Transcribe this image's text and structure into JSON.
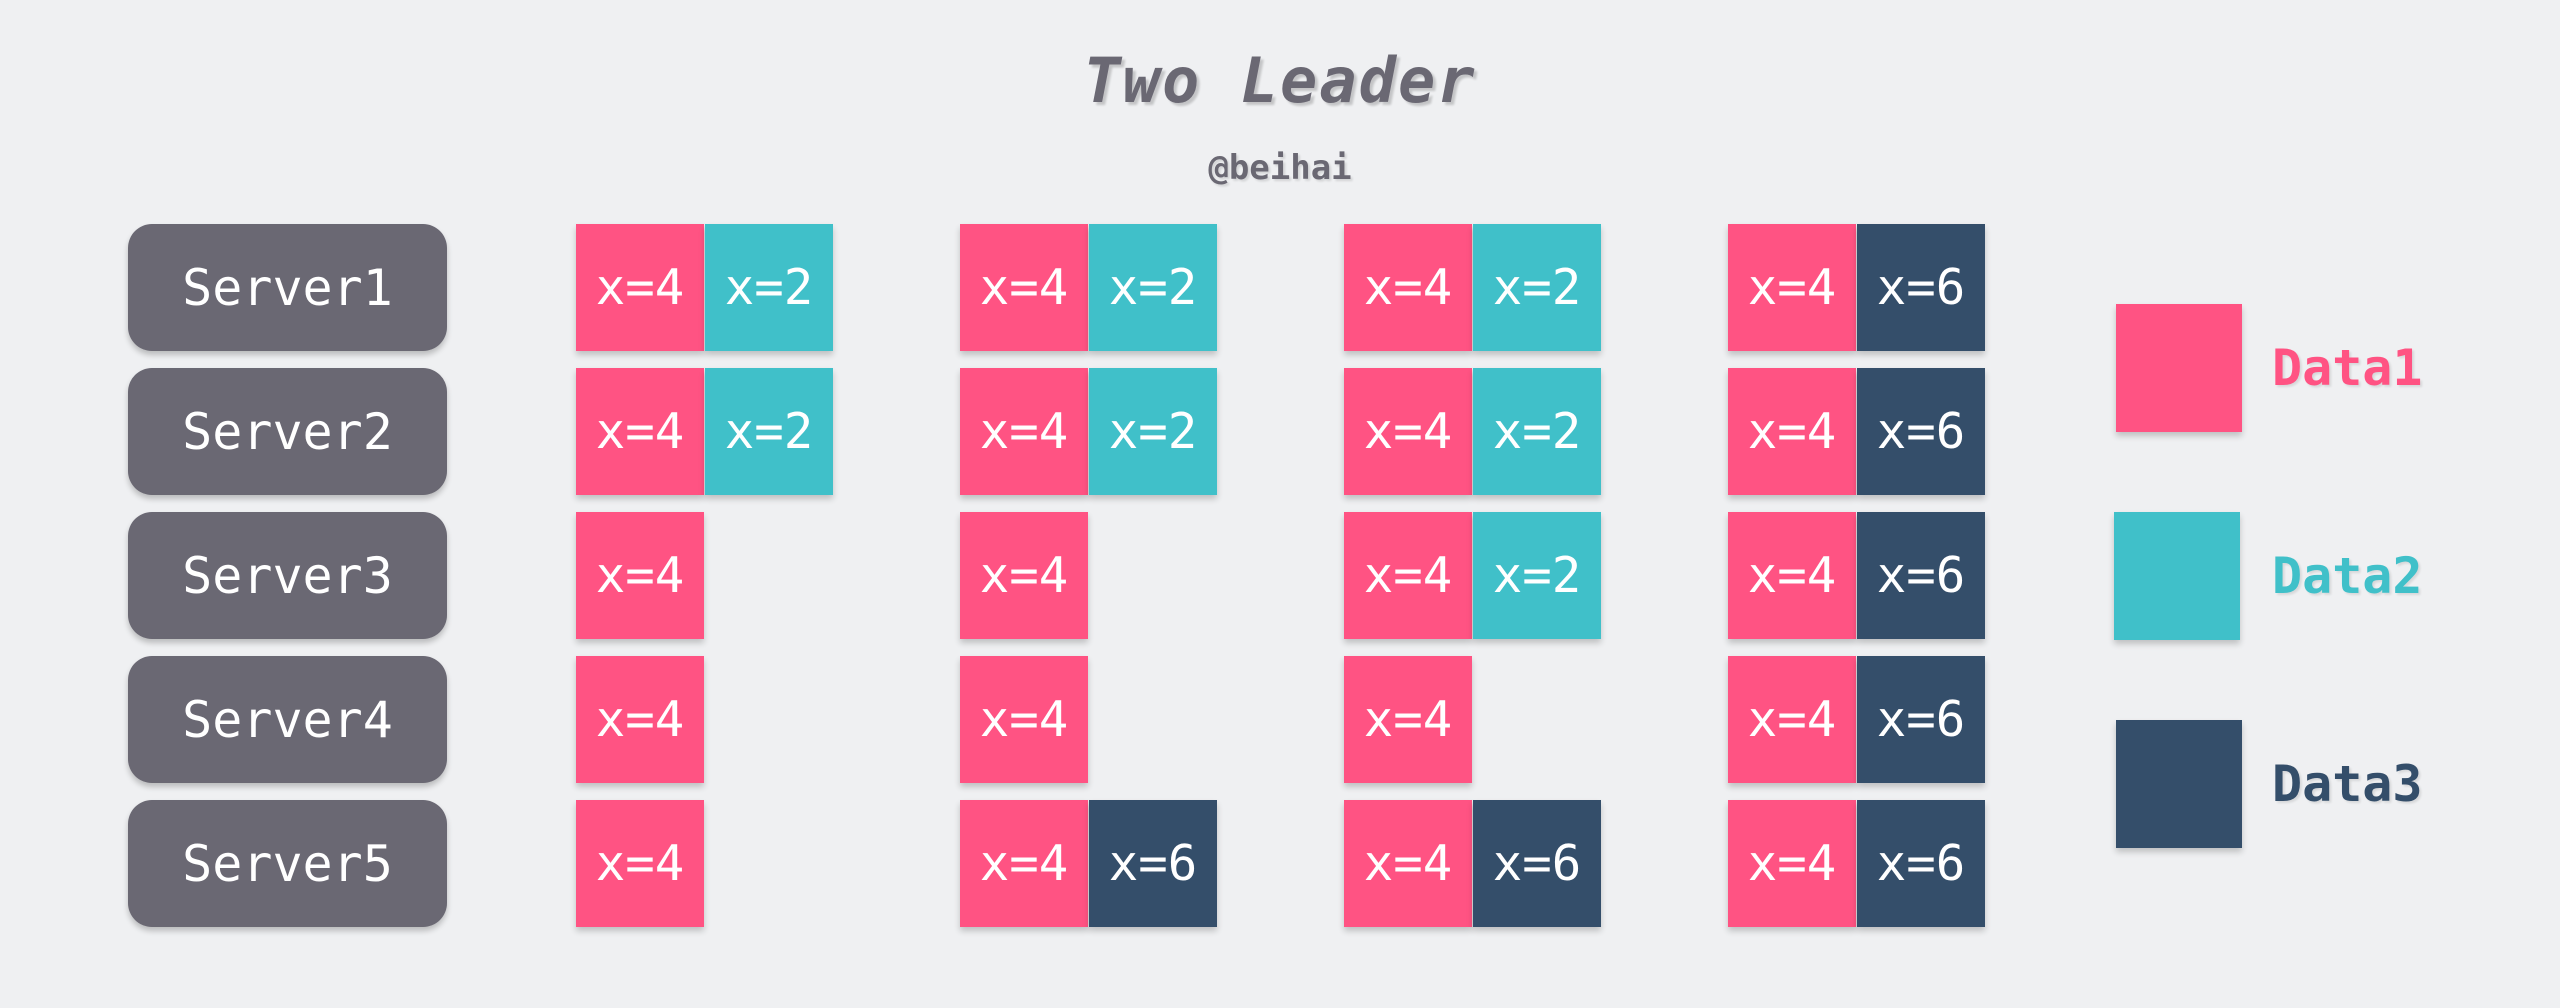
{
  "title": "Two Leader",
  "subtitle": "@beihai",
  "colors": {
    "background": "#eff0f2",
    "server": "#6a6873",
    "data1": "#ff5383",
    "data2": "#40c0c9",
    "data3": "#344e6a"
  },
  "servers": [
    "Server1",
    "Server2",
    "Server3",
    "Server4",
    "Server5"
  ],
  "stages": [
    [
      [
        {
          "text": "x=4",
          "kind": "data1"
        },
        {
          "text": "x=2",
          "kind": "data2"
        }
      ],
      [
        {
          "text": "x=4",
          "kind": "data1"
        },
        {
          "text": "x=2",
          "kind": "data2"
        }
      ],
      [
        {
          "text": "x=4",
          "kind": "data1"
        }
      ],
      [
        {
          "text": "x=4",
          "kind": "data1"
        }
      ],
      [
        {
          "text": "x=4",
          "kind": "data1"
        }
      ]
    ],
    [
      [
        {
          "text": "x=4",
          "kind": "data1"
        },
        {
          "text": "x=2",
          "kind": "data2"
        }
      ],
      [
        {
          "text": "x=4",
          "kind": "data1"
        },
        {
          "text": "x=2",
          "kind": "data2"
        }
      ],
      [
        {
          "text": "x=4",
          "kind": "data1"
        }
      ],
      [
        {
          "text": "x=4",
          "kind": "data1"
        }
      ],
      [
        {
          "text": "x=4",
          "kind": "data1"
        },
        {
          "text": "x=6",
          "kind": "data3"
        }
      ]
    ],
    [
      [
        {
          "text": "x=4",
          "kind": "data1"
        },
        {
          "text": "x=2",
          "kind": "data2"
        }
      ],
      [
        {
          "text": "x=4",
          "kind": "data1"
        },
        {
          "text": "x=2",
          "kind": "data2"
        }
      ],
      [
        {
          "text": "x=4",
          "kind": "data1"
        },
        {
          "text": "x=2",
          "kind": "data2"
        }
      ],
      [
        {
          "text": "x=4",
          "kind": "data1"
        }
      ],
      [
        {
          "text": "x=4",
          "kind": "data1"
        },
        {
          "text": "x=6",
          "kind": "data3"
        }
      ]
    ],
    [
      [
        {
          "text": "x=4",
          "kind": "data1"
        },
        {
          "text": "x=6",
          "kind": "data3"
        }
      ],
      [
        {
          "text": "x=4",
          "kind": "data1"
        },
        {
          "text": "x=6",
          "kind": "data3"
        }
      ],
      [
        {
          "text": "x=4",
          "kind": "data1"
        },
        {
          "text": "x=6",
          "kind": "data3"
        }
      ],
      [
        {
          "text": "x=4",
          "kind": "data1"
        },
        {
          "text": "x=6",
          "kind": "data3"
        }
      ],
      [
        {
          "text": "x=4",
          "kind": "data1"
        },
        {
          "text": "x=6",
          "kind": "data3"
        }
      ]
    ]
  ],
  "legend": [
    {
      "label": "Data1",
      "kind": "data1"
    },
    {
      "label": "Data2",
      "kind": "data2"
    },
    {
      "label": "Data3",
      "kind": "data3"
    }
  ]
}
